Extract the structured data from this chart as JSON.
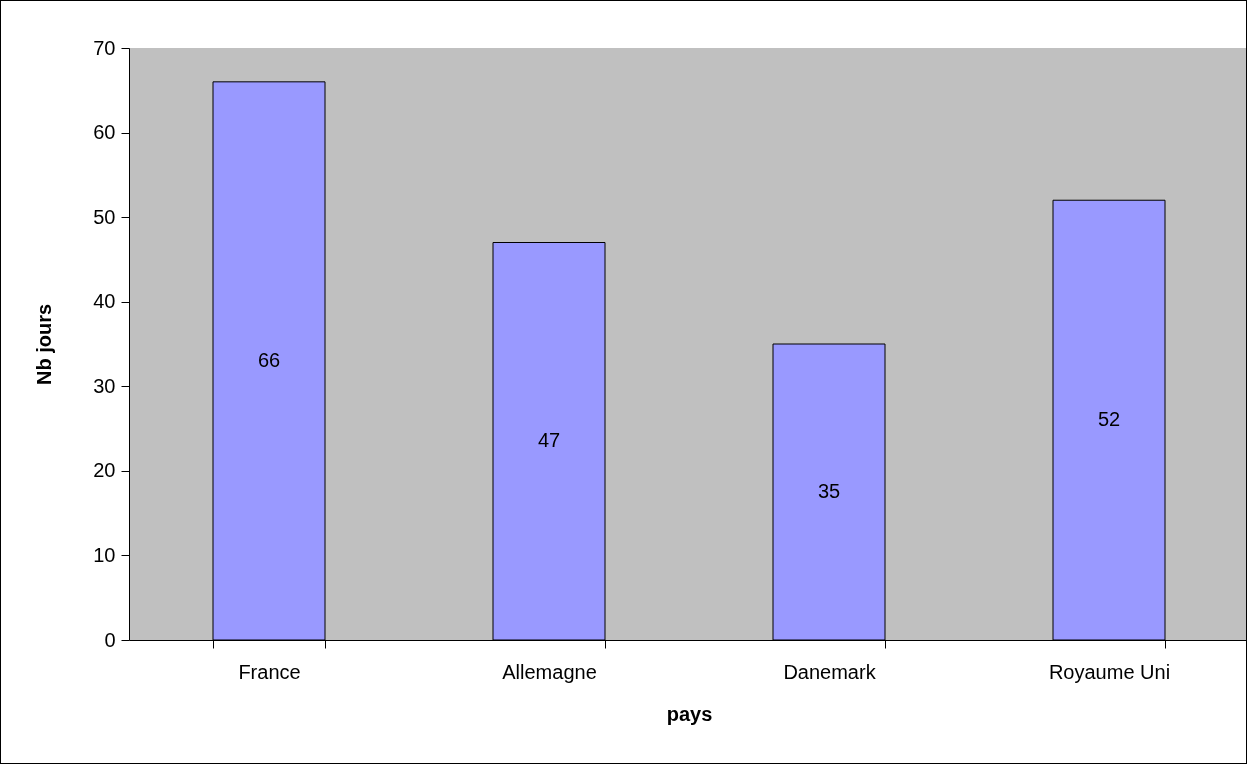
{
  "chart_data": {
    "type": "bar",
    "xlabel": "pays",
    "ylabel": "Nb jours",
    "categories": [
      "France",
      "Allemagne",
      "Danemark",
      "Royaume Uni"
    ],
    "values": [
      66,
      47,
      35,
      52
    ],
    "color": "#9999ff",
    "ylim": [
      0,
      70
    ],
    "yticks": [
      0,
      10,
      20,
      30,
      40,
      50,
      60,
      70
    ],
    "grid": false,
    "data_labels": true
  }
}
